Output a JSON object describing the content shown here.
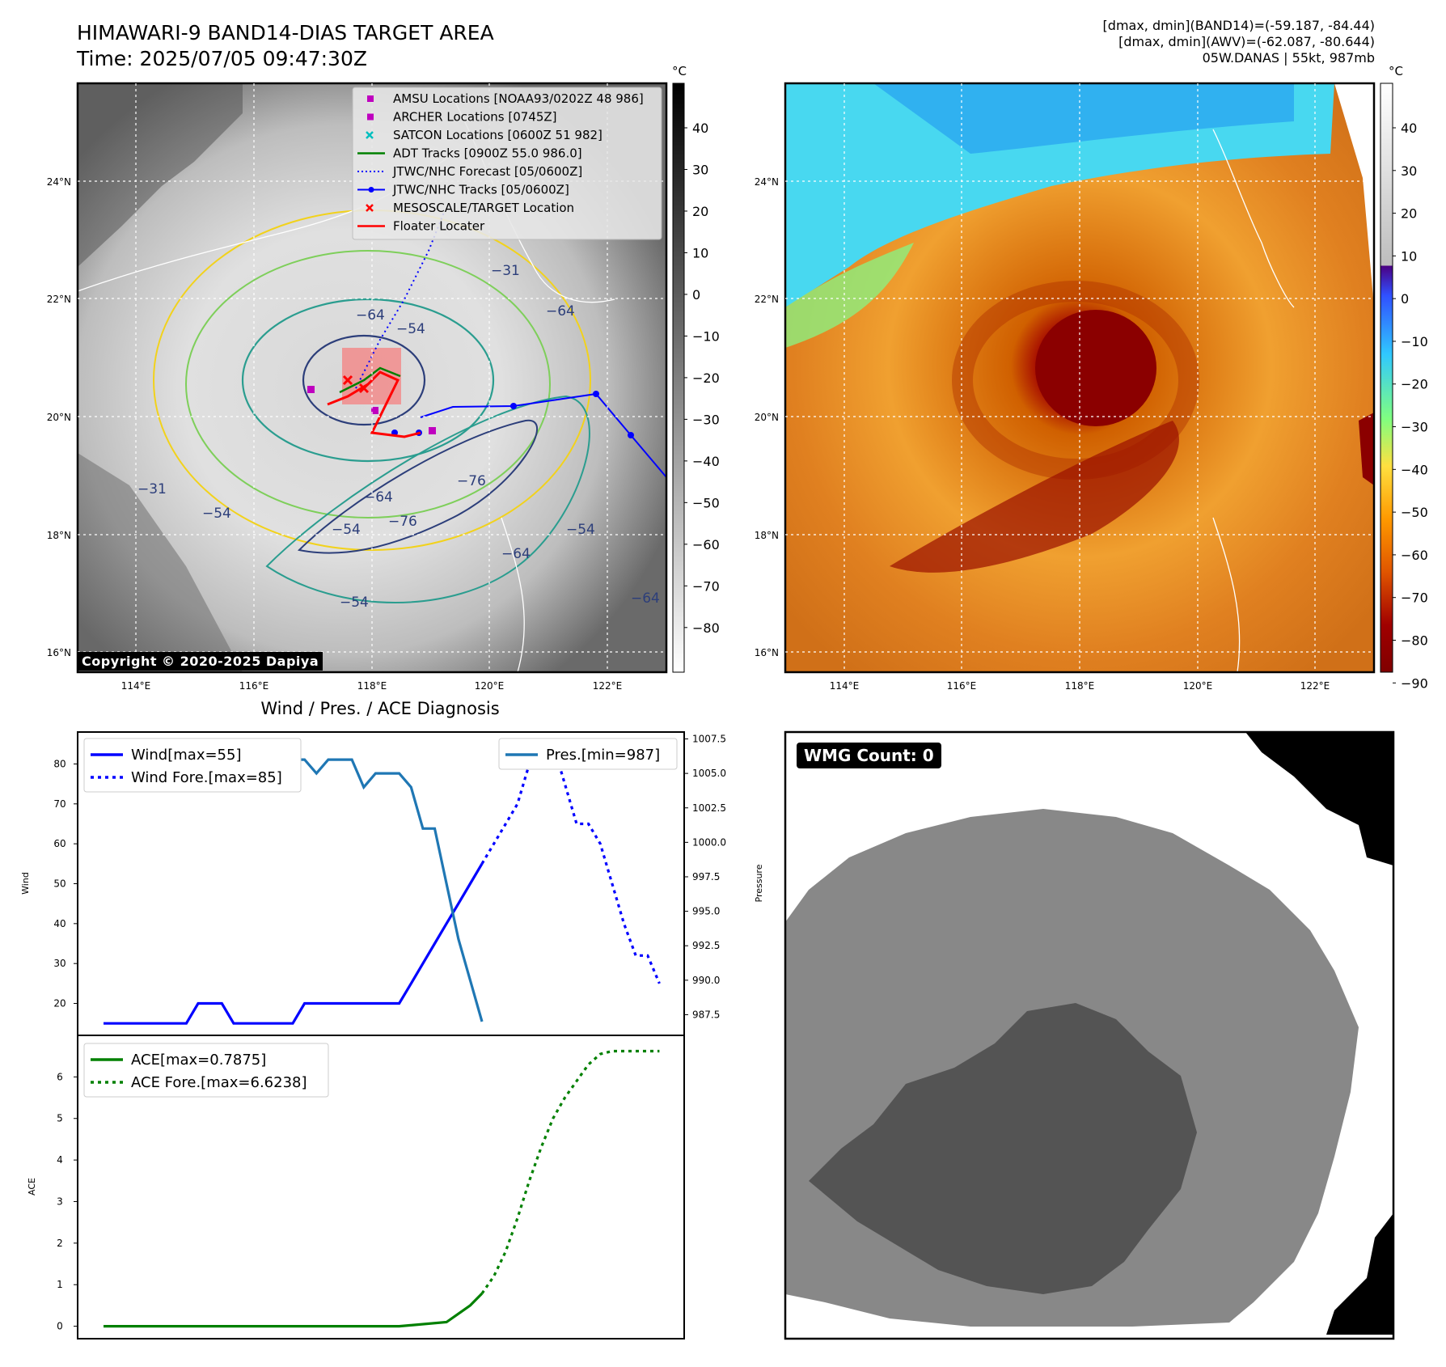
{
  "header": {
    "title_line1": "HIMAWARI-9 BAND14-DIAS TARGET AREA",
    "title_line2": "Time: 2025/07/05 09:47:30Z",
    "info_line1": "[dmax, dmin](BAND14)=(-59.187, -84.44)",
    "info_line2": "[dmax, dmin](AWV)=(-62.087, -80.644)",
    "info_line3": "05W.DANAS | 55kt, 987mb"
  },
  "map_axes": {
    "lat_ticks": [
      "24°N",
      "22°N",
      "20°N",
      "18°N",
      "16°N"
    ],
    "lon_ticks": [
      "114°E",
      "116°E",
      "118°E",
      "120°E",
      "122°E"
    ]
  },
  "copyright": "Copyright © 2020-2025 Dapiya",
  "legend_map": [
    {
      "label": "AMSU Locations [NOAA93/0202Z 48 986]",
      "color": "#bf00bf",
      "marker": "square"
    },
    {
      "label": "ARCHER Locations [0745Z]",
      "color": "#bf00bf",
      "marker": "square"
    },
    {
      "label": "SATCON Locations [0600Z 51 982]",
      "color": "#00bfbf",
      "marker": "x"
    },
    {
      "label": "ADT Tracks [0900Z 55.0 986.0]",
      "color": "#008000",
      "marker": "line"
    },
    {
      "label": "JTWC/NHC Forecast [05/0600Z]",
      "color": "#0000ff",
      "marker": "dotted"
    },
    {
      "label": "JTWC/NHC Tracks [05/0600Z]",
      "color": "#0000ff",
      "marker": "line-dot"
    },
    {
      "label": "MESOSCALE/TARGET Location",
      "color": "#ff0000",
      "marker": "x"
    },
    {
      "label": "Floater Locater",
      "color": "#ff0000",
      "marker": "line"
    }
  ],
  "contour_labels": [
    "−64",
    "−54",
    "−31",
    "−76",
    "−64",
    "−54",
    "−76",
    "−64",
    "−54",
    "−31",
    "−54",
    "−64",
    "−54",
    "−64"
  ],
  "colorbar_gray": {
    "unit": "°C",
    "ticks": [
      "40",
      "30",
      "20",
      "10",
      "0",
      "−10",
      "−20",
      "−30",
      "−40",
      "−50",
      "−60",
      "−70",
      "−80"
    ]
  },
  "colorbar_color": {
    "unit": "°C",
    "ticks": [
      "40",
      "30",
      "20",
      "10",
      "0",
      "−10",
      "−20",
      "−30",
      "−40",
      "−50",
      "−60",
      "−70",
      "−80",
      "−90"
    ]
  },
  "bottom_title": "Wind / Pres. / ACE Diagnosis",
  "wmg_count_label": "WMG Count: 0",
  "chart_data": [
    {
      "type": "line",
      "name": "wind-pressure",
      "xlabel": "",
      "ylabel": "Wind",
      "y2label": "Pressure",
      "ylim": [
        12,
        88
      ],
      "y2lim": [
        986.0,
        1008.0
      ],
      "yticks": [
        20,
        30,
        40,
        50,
        60,
        70,
        80
      ],
      "y2ticks": [
        "987.5",
        "990.0",
        "992.5",
        "995.0",
        "997.5",
        "1000.0",
        "1002.5",
        "1005.0",
        "1007.5"
      ],
      "x_count": 48,
      "legend": [
        "Wind[max=55]",
        "Wind Fore.[max=85]",
        "Pres.[min=987]"
      ],
      "series": [
        {
          "name": "Wind[max=55]",
          "axis": "left",
          "color": "#0000ff",
          "style": "solid",
          "x": [
            0,
            1,
            2,
            3,
            4,
            5,
            6,
            7,
            8,
            9,
            10,
            11,
            12,
            13,
            14,
            15,
            16,
            17,
            18,
            19,
            20,
            21,
            22,
            23,
            24,
            25,
            26,
            27,
            28,
            29,
            30,
            31,
            32
          ],
          "y": [
            15,
            15,
            15,
            15,
            15,
            15,
            15,
            15,
            20,
            20,
            20,
            15,
            15,
            15,
            15,
            15,
            15,
            20,
            20,
            20,
            20,
            20,
            20,
            20,
            20,
            20,
            25,
            30,
            35,
            40,
            45,
            50,
            55
          ]
        },
        {
          "name": "Wind Fore.[max=85]",
          "axis": "left",
          "color": "#0000ff",
          "style": "dotted",
          "x": [
            32,
            33,
            34,
            35,
            36,
            37,
            38,
            39,
            40,
            41,
            42,
            43,
            44,
            45,
            46,
            47
          ],
          "y": [
            55,
            60,
            65,
            70,
            80,
            85,
            85,
            75,
            65,
            65,
            60,
            50,
            40,
            32,
            32,
            25
          ]
        },
        {
          "name": "Pres.[min=987]",
          "axis": "right",
          "color": "#1f77b4",
          "style": "solid",
          "x": [
            0,
            1,
            2,
            3,
            4,
            5,
            6,
            7,
            8,
            9,
            10,
            11,
            12,
            13,
            14,
            15,
            16,
            17,
            18,
            19,
            20,
            21,
            22,
            23,
            24,
            25,
            26,
            27,
            28,
            29,
            30,
            31,
            32
          ],
          "y": [
            1007.0,
            1007.0,
            1007.0,
            1007.0,
            1007.0,
            1006.0,
            1005.0,
            1005.0,
            1005.0,
            1005.0,
            1005.0,
            1005.0,
            1005.5,
            1005.5,
            1005.5,
            1005.5,
            1006.0,
            1006.0,
            1005.0,
            1006.0,
            1006.0,
            1006.0,
            1004.0,
            1005.0,
            1005.0,
            1005.0,
            1004.0,
            1001.0,
            1001.0,
            997.0,
            993.0,
            990.0,
            987.0
          ]
        }
      ]
    },
    {
      "type": "line",
      "name": "ace",
      "xlabel": "",
      "ylabel": "ACE",
      "ylim": [
        -0.3,
        7.0
      ],
      "yticks": [
        0,
        1,
        2,
        3,
        4,
        5,
        6
      ],
      "x_count": 48,
      "legend": [
        "ACE[max=0.7875]",
        "ACE Fore.[max=6.6238]"
      ],
      "series": [
        {
          "name": "ACE[max=0.7875]",
          "color": "#008000",
          "style": "solid",
          "x": [
            0,
            5,
            10,
            15,
            20,
            25,
            29,
            30,
            31,
            32
          ],
          "y": [
            0,
            0,
            0,
            0,
            0,
            0,
            0.1,
            0.3,
            0.5,
            0.7875
          ]
        },
        {
          "name": "ACE Fore.[max=6.6238]",
          "color": "#008000",
          "style": "dotted",
          "x": [
            32,
            33,
            34,
            35,
            36,
            37,
            38,
            39,
            40,
            41,
            42,
            43,
            44,
            45,
            46,
            47
          ],
          "y": [
            0.7875,
            1.2,
            1.8,
            2.6,
            3.5,
            4.3,
            5.0,
            5.5,
            5.9,
            6.3,
            6.55,
            6.62,
            6.62,
            6.62,
            6.62,
            6.62
          ]
        }
      ]
    }
  ]
}
